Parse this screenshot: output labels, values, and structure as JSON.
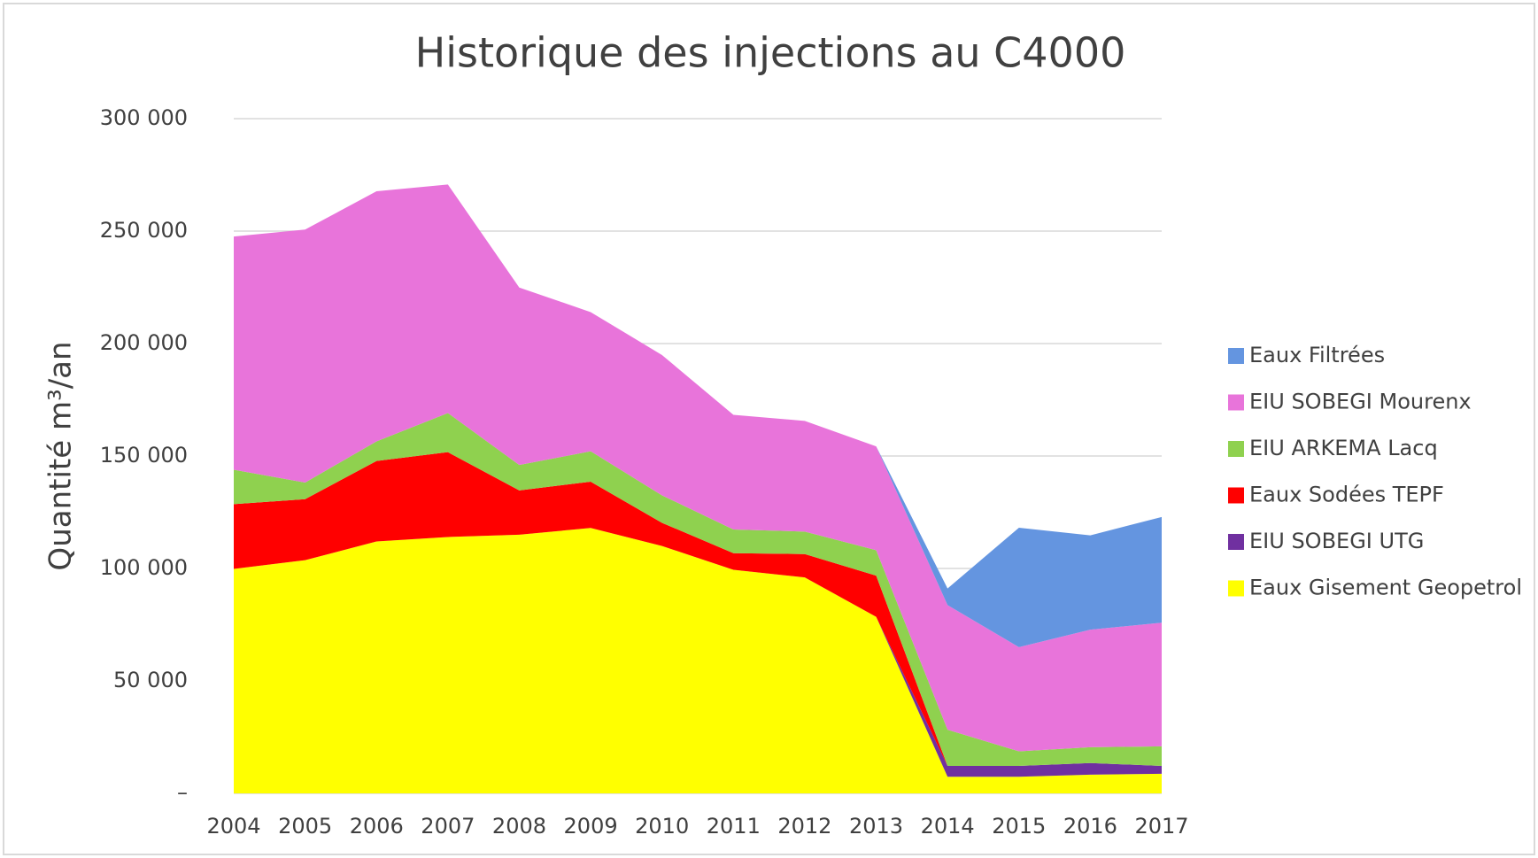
{
  "chart_data": {
    "type": "stacked_area",
    "title": "Historique des injections au C4000",
    "y_label": "Quantité m³/an",
    "categories": [
      "2004",
      "2005",
      "2006",
      "2007",
      "2008",
      "2009",
      "2010",
      "2011",
      "2012",
      "2013",
      "2014",
      "2015",
      "2016",
      "2017"
    ],
    "series": [
      {
        "name": "Eaux Filtrées",
        "color": "#6495e0",
        "values": [
          0,
          0,
          0,
          0,
          0,
          0,
          0,
          0,
          0,
          0,
          7400,
          53100,
          41900,
          47000
        ]
      },
      {
        "name": "EIU SOBEGI Mourenx",
        "color": "#e874da",
        "values": [
          103700,
          112500,
          111200,
          101600,
          78900,
          61900,
          62400,
          51000,
          49200,
          46200,
          55400,
          46300,
          52300,
          55000
        ]
      },
      {
        "name": "EIU ARKEMA Lacq",
        "color": "#8fd14f",
        "values": [
          15300,
          7400,
          8700,
          17400,
          11300,
          13500,
          12200,
          10500,
          10000,
          11300,
          16100,
          6500,
          7000,
          8700
        ]
      },
      {
        "name": "Eaux Sodées TEPF",
        "color": "#ff0000",
        "values": [
          28800,
          27100,
          35800,
          37700,
          19700,
          20600,
          10300,
          7400,
          10400,
          18300,
          0,
          0,
          0,
          0
        ]
      },
      {
        "name": "EIU SOBEGI UTG",
        "color": "#7030a0",
        "values": [
          0,
          0,
          0,
          0,
          0,
          0,
          0,
          0,
          0,
          0,
          4800,
          4800,
          5200,
          3500
        ]
      },
      {
        "name": "Eaux Gisement Geopetrol",
        "color": "#ffff00",
        "values": [
          99800,
          103700,
          112000,
          114000,
          115000,
          118000,
          110000,
          99400,
          96000,
          78500,
          7400,
          7400,
          8300,
          8700
        ]
      }
    ],
    "ylim": [
      0,
      300000
    ],
    "yticks": [
      {
        "value": 0,
        "label": "–"
      },
      {
        "value": 50000,
        "label": "50 000"
      },
      {
        "value": 100000,
        "label": "100 000"
      },
      {
        "value": 150000,
        "label": "150 000"
      },
      {
        "value": 200000,
        "label": "200 000"
      },
      {
        "value": 250000,
        "label": "250 000"
      },
      {
        "value": 300000,
        "label": "300 000"
      }
    ],
    "grid": true,
    "legend": "right"
  }
}
